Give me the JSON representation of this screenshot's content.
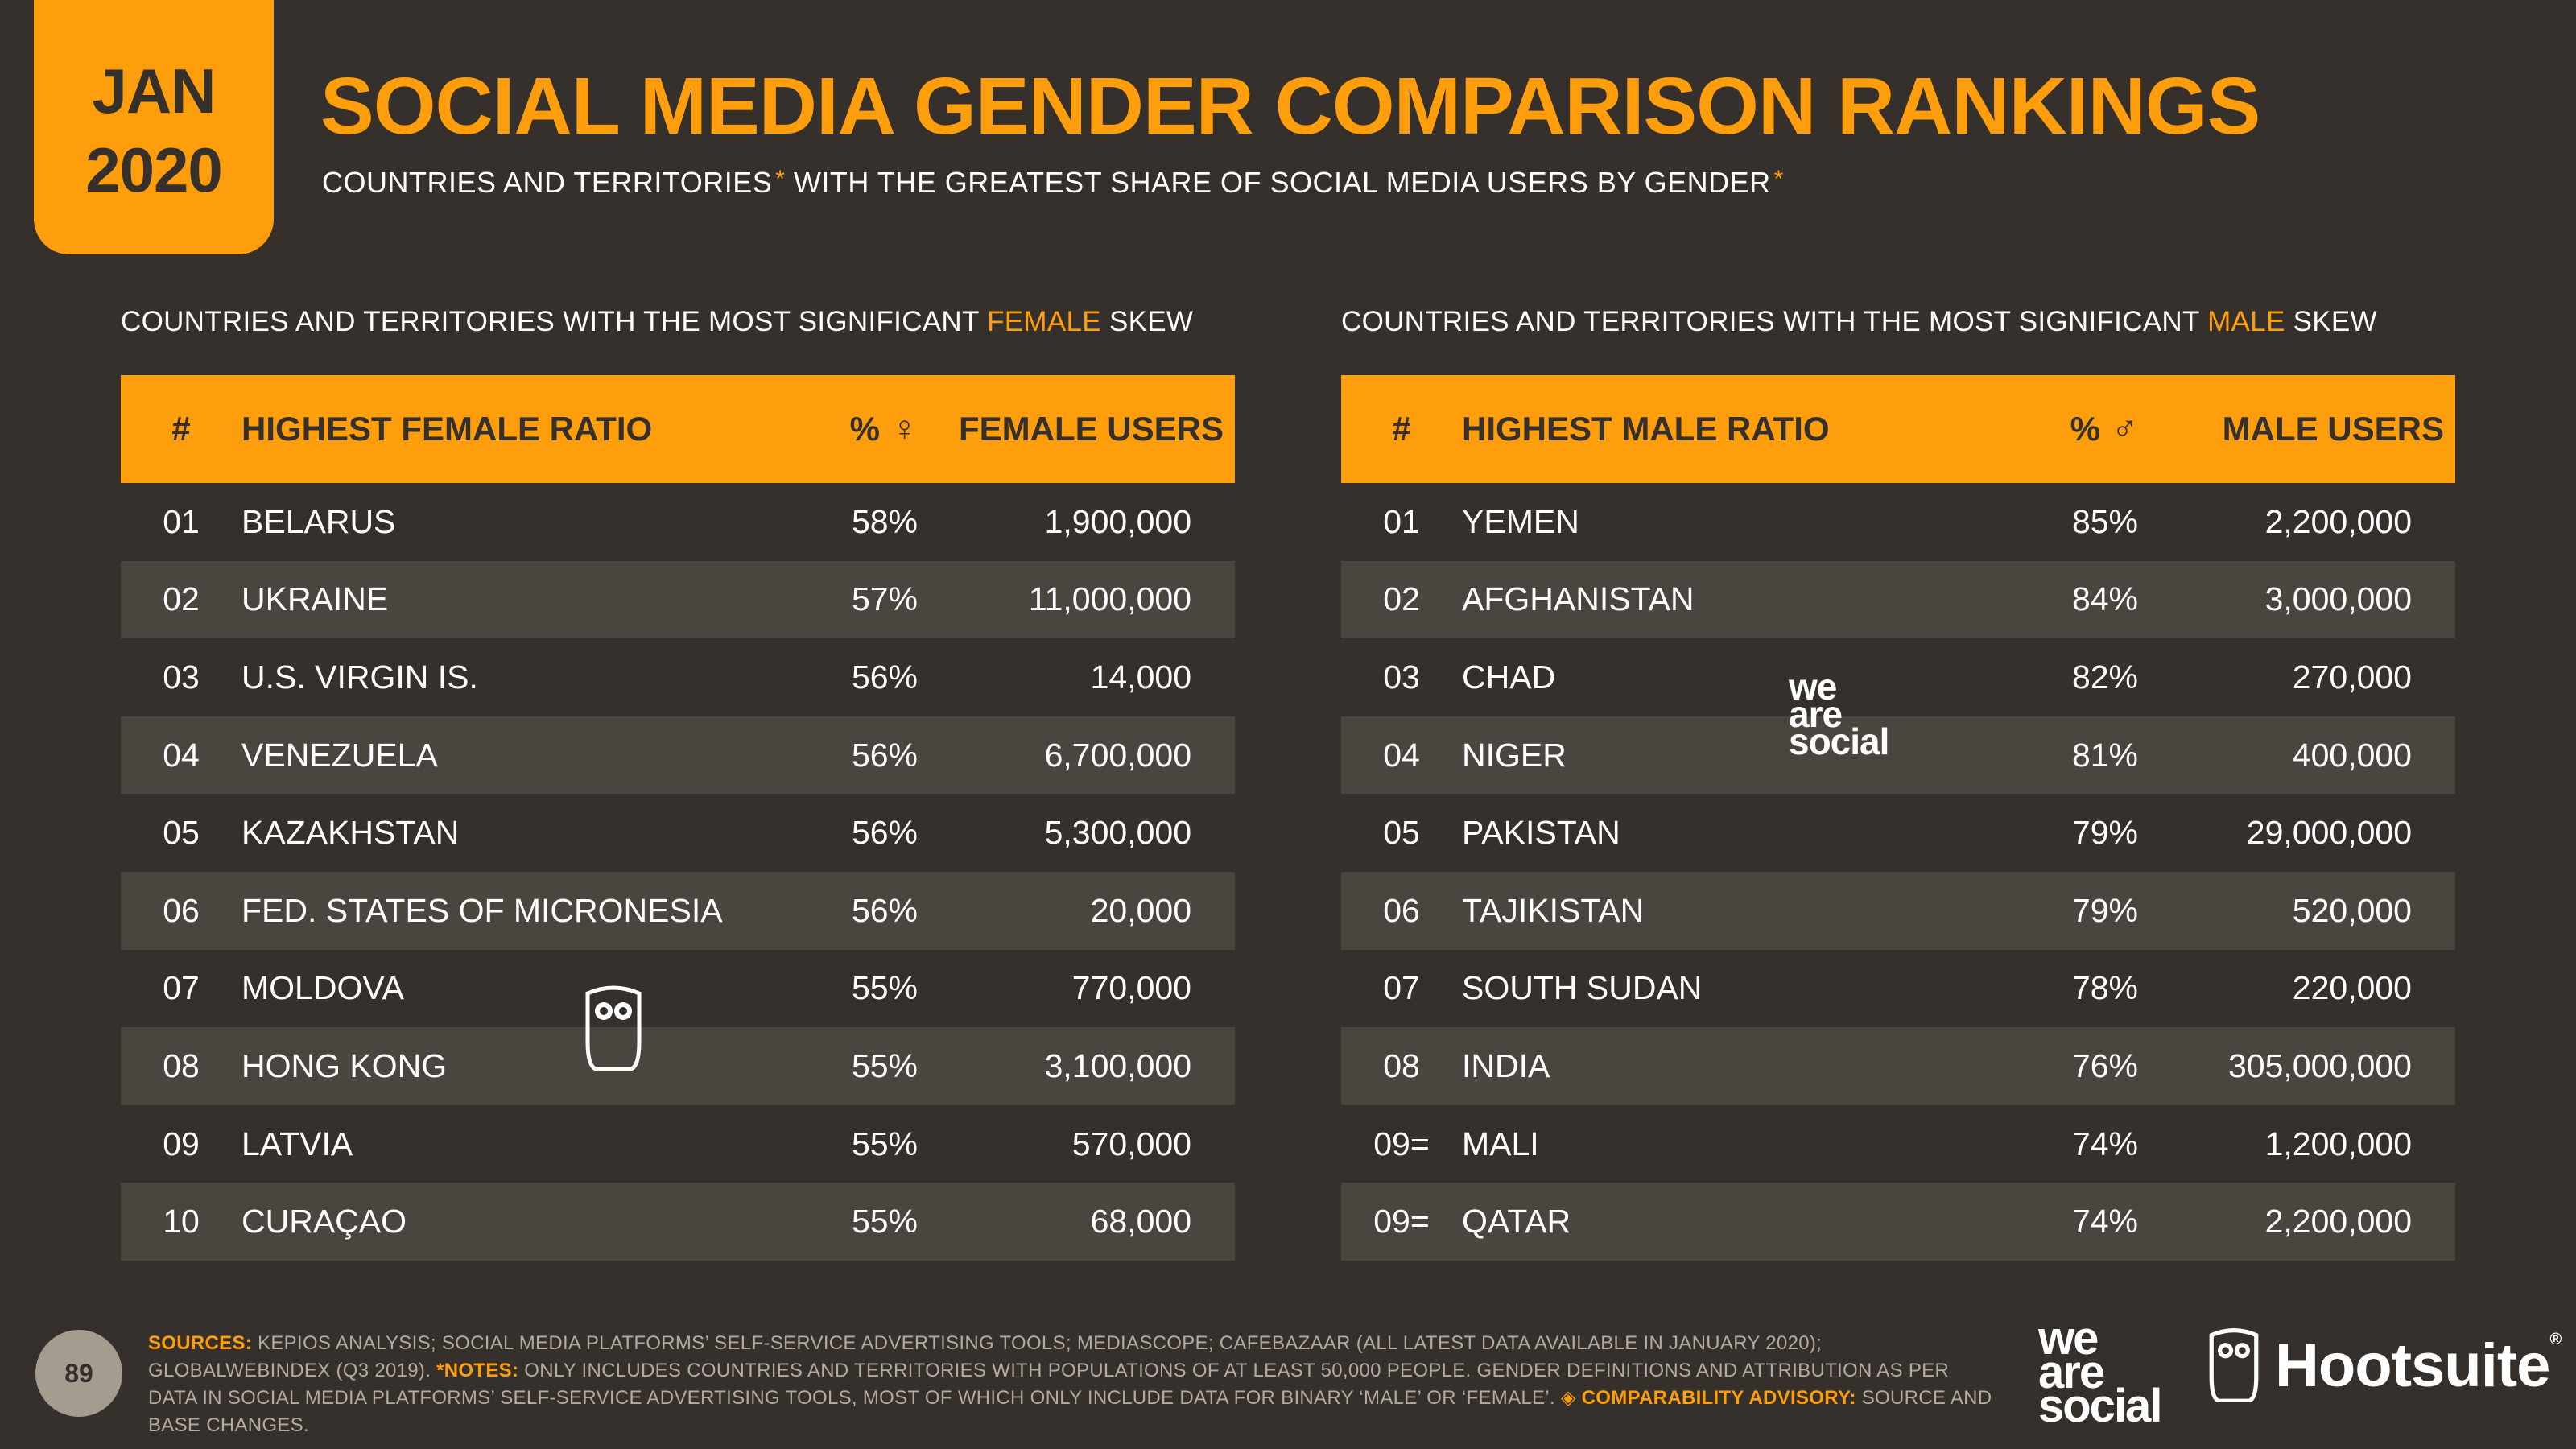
{
  "badge": {
    "month": "JAN",
    "year": "2020"
  },
  "title": "SOCIAL MEDIA GENDER COMPARISON RANKINGS",
  "subtitle": {
    "part1": "COUNTRIES AND TERRITORIES",
    "mark1": "*",
    "part2": " WITH THE GREATEST SHARE OF SOCIAL MEDIA USERS BY GENDER",
    "mark2": "*"
  },
  "female_section": {
    "heading_pre": "COUNTRIES AND TERRITORIES WITH THE MOST SIGNIFICANT ",
    "heading_hl": "FEMALE",
    "heading_post": " SKEW",
    "columns": {
      "rank": "#",
      "name": "HIGHEST FEMALE RATIO",
      "pct": "%",
      "pct_symbol": "♀",
      "users": "FEMALE USERS"
    },
    "rows": [
      {
        "rank": "01",
        "name": "BELARUS",
        "pct": "58%",
        "users": "1,900,000"
      },
      {
        "rank": "02",
        "name": "UKRAINE",
        "pct": "57%",
        "users": "11,000,000"
      },
      {
        "rank": "03",
        "name": "U.S. VIRGIN IS.",
        "pct": "56%",
        "users": "14,000"
      },
      {
        "rank": "04",
        "name": "VENEZUELA",
        "pct": "56%",
        "users": "6,700,000"
      },
      {
        "rank": "05",
        "name": "KAZAKHSTAN",
        "pct": "56%",
        "users": "5,300,000"
      },
      {
        "rank": "06",
        "name": "FED. STATES OF MICRONESIA",
        "pct": "56%",
        "users": "20,000"
      },
      {
        "rank": "07",
        "name": "MOLDOVA",
        "pct": "55%",
        "users": "770,000"
      },
      {
        "rank": "08",
        "name": "HONG KONG",
        "pct": "55%",
        "users": "3,100,000"
      },
      {
        "rank": "09",
        "name": "LATVIA",
        "pct": "55%",
        "users": "570,000"
      },
      {
        "rank": "10",
        "name": "CURAÇAO",
        "pct": "55%",
        "users": "68,000"
      }
    ]
  },
  "male_section": {
    "heading_pre": "COUNTRIES AND TERRITORIES WITH THE MOST SIGNIFICANT ",
    "heading_hl": "MALE",
    "heading_post": " SKEW",
    "columns": {
      "rank": "#",
      "name": "HIGHEST MALE RATIO",
      "pct": "%",
      "pct_symbol": "♂",
      "users": "MALE USERS"
    },
    "rows": [
      {
        "rank": "01",
        "name": "YEMEN",
        "pct": "85%",
        "users": "2,200,000"
      },
      {
        "rank": "02",
        "name": "AFGHANISTAN",
        "pct": "84%",
        "users": "3,000,000"
      },
      {
        "rank": "03",
        "name": "CHAD",
        "pct": "82%",
        "users": "270,000"
      },
      {
        "rank": "04",
        "name": "NIGER",
        "pct": "81%",
        "users": "400,000"
      },
      {
        "rank": "05",
        "name": "PAKISTAN",
        "pct": "79%",
        "users": "29,000,000"
      },
      {
        "rank": "06",
        "name": "TAJIKISTAN",
        "pct": "79%",
        "users": "520,000"
      },
      {
        "rank": "07",
        "name": "SOUTH SUDAN",
        "pct": "78%",
        "users": "220,000"
      },
      {
        "rank": "08",
        "name": "INDIA",
        "pct": "76%",
        "users": "305,000,000"
      },
      {
        "rank": "09=",
        "name": "MALI",
        "pct": "74%",
        "users": "1,200,000"
      },
      {
        "rank": "09=",
        "name": "QATAR",
        "pct": "74%",
        "users": "2,200,000"
      }
    ]
  },
  "watermark_text": [
    "we",
    "are",
    "social"
  ],
  "page_number": "89",
  "footnote": {
    "sources_label": "SOURCES:",
    "sources_text": " KEPIOS ANALYSIS; SOCIAL MEDIA PLATFORMS’ SELF-SERVICE ADVERTISING TOOLS; MEDIASCOPE; CAFEBAZAAR (ALL LATEST DATA AVAILABLE IN JANUARY 2020); GLOBALWEBINDEX (Q3 2019). ",
    "notes_label": "*NOTES:",
    "notes_text": " ONLY INCLUDES COUNTRIES AND TERRITORIES WITH POPULATIONS OF AT LEAST 50,000 PEOPLE. GENDER DEFINITIONS AND ATTRIBUTION AS PER DATA IN SOCIAL MEDIA PLATFORMS’ SELF-SERVICE ADVERTISING TOOLS, MOST OF WHICH ONLY INCLUDE DATA FOR BINARY ‘MALE’ OR ‘FEMALE’. ",
    "advisory_label": "◈ COMPARABILITY ADVISORY:",
    "advisory_text": " SOURCE AND BASE CHANGES."
  },
  "logos": {
    "we_are_social": [
      "we",
      "are",
      "social"
    ],
    "hootsuite": "Hootsuite",
    "hootsuite_mark": "®"
  },
  "colors": {
    "accent": "#ff9e0d",
    "background": "#35302b",
    "row_alt": "#4b4540"
  }
}
